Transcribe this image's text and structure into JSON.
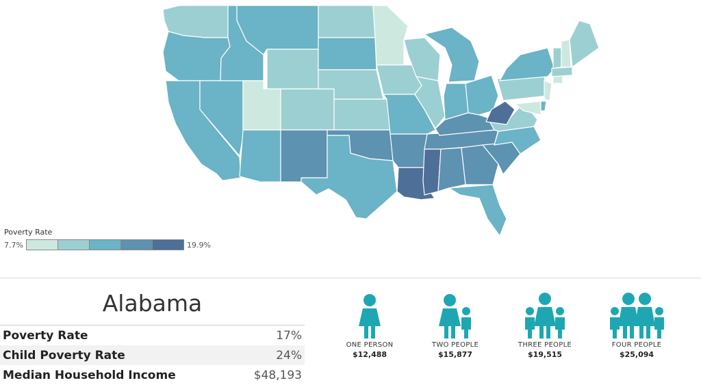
{
  "map": {
    "legend": {
      "title": "Poverty Rate",
      "min_label": "7.7%",
      "max_label": "19.9%",
      "colors": [
        "#cde9df",
        "#9ccfd2",
        "#6bb3c6",
        "#5d92b0",
        "#4e6f98"
      ]
    },
    "colors": {
      "c1": "#cde9df",
      "c2": "#9ccfd2",
      "c3": "#6bb3c6",
      "c4": "#5d92b0",
      "c5": "#4e6f98"
    }
  },
  "selected_state": {
    "name": "Alabama",
    "stats": [
      {
        "label": "Poverty Rate",
        "value": "17%"
      },
      {
        "label": "Child Poverty Rate",
        "value": "24%"
      },
      {
        "label": "Median Household Income",
        "value": "$48,193"
      }
    ]
  },
  "poverty_thresholds": [
    {
      "label": "ONE PERSON",
      "value": "$12,488",
      "people": 1
    },
    {
      "label": "TWO PEOPLE",
      "value": "$15,877",
      "people": 2
    },
    {
      "label": "THREE PEOPLE",
      "value": "$19,515",
      "people": 3
    },
    {
      "label": "FOUR PEOPLE",
      "value": "$25,094",
      "people": 4
    }
  ],
  "icon_color": "#1ea7b3",
  "chart_data": {
    "type": "choropleth",
    "title": "",
    "legend_title": "Poverty Rate",
    "range": [
      "7.7%",
      "19.9%"
    ],
    "bins": 5,
    "selected": {
      "state": "Alabama",
      "poverty_rate": 17,
      "child_poverty_rate": 24,
      "median_household_income": 48193
    },
    "thresholds": [
      {
        "household": "ONE PERSON",
        "value": 12488
      },
      {
        "household": "TWO PEOPLE",
        "value": 15877
      },
      {
        "household": "THREE PEOPLE",
        "value": 19515
      },
      {
        "household": "FOUR PEOPLE",
        "value": 25094
      }
    ]
  }
}
